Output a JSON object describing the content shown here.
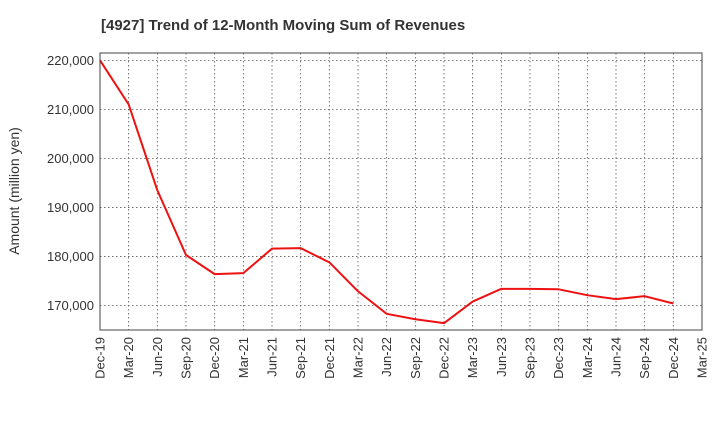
{
  "title": "[4927]  Trend of 12-Month Moving Sum of Revenues",
  "chart_data": {
    "type": "line",
    "title": "[4927]  Trend of 12-Month Moving Sum of Revenues",
    "xlabel": "",
    "ylabel": "Amount (million yen)",
    "ylim": [
      165000,
      221500
    ],
    "y_ticks": [
      170000,
      180000,
      190000,
      200000,
      210000,
      220000
    ],
    "y_tick_labels": [
      "170,000",
      "180,000",
      "190,000",
      "200,000",
      "210,000",
      "220,000"
    ],
    "x_tick_labels": [
      "Dec-19",
      "Mar-20",
      "Jun-20",
      "Sep-20",
      "Dec-20",
      "Mar-21",
      "Jun-21",
      "Sep-21",
      "Dec-21",
      "Mar-22",
      "Jun-22",
      "Sep-22",
      "Dec-22",
      "Mar-23",
      "Jun-23",
      "Sep-23",
      "Dec-23",
      "Mar-24",
      "Jun-24",
      "Sep-24",
      "Dec-24",
      "Mar-25"
    ],
    "grid": true,
    "series": [
      {
        "color": "#ee1111",
        "x": [
          "Dec-19",
          "Mar-20",
          "Jun-20",
          "Sep-20",
          "Dec-20",
          "Mar-21",
          "Jun-21",
          "Sep-21",
          "Dec-21",
          "Mar-22",
          "Jun-22",
          "Sep-22",
          "Dec-22",
          "Mar-23",
          "Jun-23",
          "Sep-23",
          "Dec-23",
          "Mar-24",
          "Jun-24",
          "Sep-24",
          "Dec-24"
        ],
        "values": [
          220000,
          211000,
          193500,
          180300,
          176400,
          176600,
          181600,
          181700,
          178800,
          172900,
          168300,
          167200,
          166400,
          170800,
          173400,
          173400,
          173300,
          172100,
          171300,
          171900,
          170400
        ]
      }
    ]
  }
}
